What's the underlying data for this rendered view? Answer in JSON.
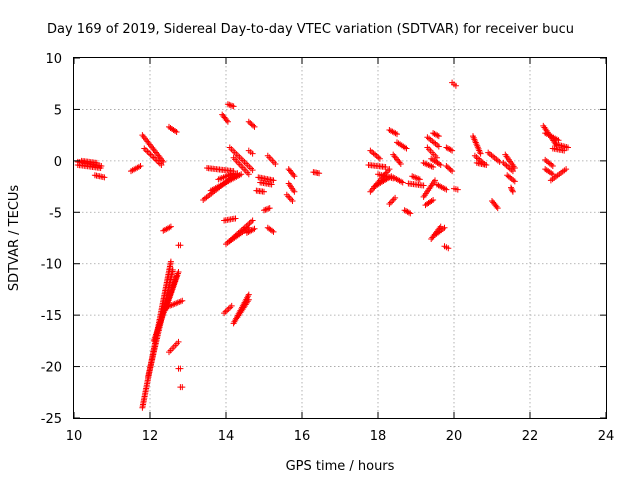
{
  "chart_data": {
    "type": "scatter",
    "title": "Day 169 of 2019, Sidereal Day-to-day VTEC variation (SDTVAR) for receiver bucu",
    "xlabel": "GPS time / hours",
    "ylabel": "SDTVAR / TECUs",
    "xlim": [
      10,
      24
    ],
    "ylim": [
      -25,
      10
    ],
    "xticks": [
      10,
      12,
      14,
      16,
      18,
      20,
      22,
      24
    ],
    "yticks": [
      -25,
      -20,
      -15,
      -10,
      -5,
      0,
      5,
      10
    ],
    "grid": true,
    "marker": "plus",
    "marker_color": "#ff0000",
    "series": [
      {
        "name": "SDTVAR",
        "segments": [
          {
            "x": [
              10.1,
              10.72
            ],
            "y": [
              -0.1,
              -0.5
            ]
          },
          {
            "x": [
              10.1,
              10.7
            ],
            "y": [
              -0.4,
              -0.7
            ]
          },
          {
            "x": [
              10.2,
              10.6
            ],
            "y": [
              0.0,
              -0.2
            ]
          },
          {
            "x": [
              10.55,
              10.8
            ],
            "y": [
              -1.4,
              -1.6
            ]
          },
          {
            "x": [
              11.5,
              11.75
            ],
            "y": [
              -1.0,
              -0.5
            ]
          },
          {
            "x": [
              11.8,
              12.35
            ],
            "y": [
              2.5,
              -0.1
            ]
          },
          {
            "x": [
              11.85,
              12.3
            ],
            "y": [
              1.2,
              -0.4
            ]
          },
          {
            "x": [
              12.5,
              12.7
            ],
            "y": [
              3.3,
              2.8
            ]
          },
          {
            "x": [
              12.35,
              12.55
            ],
            "y": [
              -6.8,
              -6.4
            ]
          },
          {
            "x": [
              11.8,
              12.55
            ],
            "y": [
              -24.0,
              -9.8
            ]
          },
          {
            "x": [
              11.95,
              12.6
            ],
            "y": [
              -21.0,
              -10.6
            ]
          },
          {
            "x": [
              12.1,
              12.7
            ],
            "y": [
              -17.5,
              -11.2
            ]
          },
          {
            "x": [
              12.4,
              12.75
            ],
            "y": [
              -14.5,
              -10.8
            ]
          },
          {
            "x": [
              12.5,
              12.75
            ],
            "y": [
              -18.6,
              -17.6
            ]
          },
          {
            "x": [
              12.45,
              12.85
            ],
            "y": [
              -14.2,
              -13.6
            ]
          },
          {
            "x": [
              12.75,
              12.8
            ],
            "y": [
              -8.2,
              -8.2
            ]
          },
          {
            "x": [
              12.75,
              12.8
            ],
            "y": [
              -20.2,
              -20.2
            ]
          },
          {
            "x": [
              12.8,
              12.85
            ],
            "y": [
              -22.0,
              -22.0
            ]
          },
          {
            "x": [
              13.5,
              14.2
            ],
            "y": [
              -0.7,
              -1.0
            ]
          },
          {
            "x": [
              13.4,
              14.3
            ],
            "y": [
              -3.8,
              -1.2
            ]
          },
          {
            "x": [
              13.6,
              14.4
            ],
            "y": [
              -2.9,
              -1.3
            ]
          },
          {
            "x": [
              13.8,
              14.2
            ],
            "y": [
              -1.8,
              -1.2
            ]
          },
          {
            "x": [
              13.9,
              14.05
            ],
            "y": [
              4.5,
              3.8
            ]
          },
          {
            "x": [
              14.05,
              14.2
            ],
            "y": [
              5.5,
              5.3
            ]
          },
          {
            "x": [
              14.1,
              14.7
            ],
            "y": [
              1.3,
              -0.9
            ]
          },
          {
            "x": [
              14.2,
              14.6
            ],
            "y": [
              0.3,
              -1.3
            ]
          },
          {
            "x": [
              14.6,
              14.75
            ],
            "y": [
              3.8,
              3.3
            ]
          },
          {
            "x": [
              14.6,
              14.7
            ],
            "y": [
              1.0,
              0.7
            ]
          },
          {
            "x": [
              13.95,
              14.25
            ],
            "y": [
              -5.8,
              -5.6
            ]
          },
          {
            "x": [
              14.0,
              14.7
            ],
            "y": [
              -8.1,
              -5.8
            ]
          },
          {
            "x": [
              14.1,
              14.6
            ],
            "y": [
              -7.8,
              -6.5
            ]
          },
          {
            "x": [
              13.95,
              14.15
            ],
            "y": [
              -14.8,
              -14.1
            ]
          },
          {
            "x": [
              14.2,
              14.6
            ],
            "y": [
              -15.8,
              -13.0
            ]
          },
          {
            "x": [
              14.3,
              14.6
            ],
            "y": [
              -15.2,
              -13.5
            ]
          },
          {
            "x": [
              14.55,
              14.75
            ],
            "y": [
              -7.0,
              -6.6
            ]
          },
          {
            "x": [
              14.85,
              15.25
            ],
            "y": [
              -1.6,
              -1.9
            ]
          },
          {
            "x": [
              14.9,
              15.2
            ],
            "y": [
              -2.1,
              -2.3
            ]
          },
          {
            "x": [
              14.8,
              15.0
            ],
            "y": [
              -2.9,
              -3.0
            ]
          },
          {
            "x": [
              15.0,
              15.15
            ],
            "y": [
              -4.8,
              -4.6
            ]
          },
          {
            "x": [
              15.1,
              15.25
            ],
            "y": [
              -6.5,
              -6.9
            ]
          },
          {
            "x": [
              15.1,
              15.3
            ],
            "y": [
              0.5,
              -0.3
            ]
          },
          {
            "x": [
              15.65,
              15.8
            ],
            "y": [
              -0.8,
              -1.5
            ]
          },
          {
            "x": [
              15.65,
              15.8
            ],
            "y": [
              -2.2,
              -3.0
            ]
          },
          {
            "x": [
              15.6,
              15.75
            ],
            "y": [
              -3.3,
              -3.9
            ]
          },
          {
            "x": [
              16.3,
              16.45
            ],
            "y": [
              -1.1,
              -1.2
            ]
          },
          {
            "x": [
              17.8,
              18.05
            ],
            "y": [
              1.0,
              0.2
            ]
          },
          {
            "x": [
              17.75,
              18.2
            ],
            "y": [
              -0.4,
              -0.6
            ]
          },
          {
            "x": [
              17.8,
              18.3
            ],
            "y": [
              -3.0,
              -0.8
            ]
          },
          {
            "x": [
              17.9,
              18.35
            ],
            "y": [
              -2.5,
              -1.5
            ]
          },
          {
            "x": [
              18.0,
              18.4
            ],
            "y": [
              -1.3,
              -1.7
            ]
          },
          {
            "x": [
              18.3,
              18.5
            ],
            "y": [
              3.0,
              2.6
            ]
          },
          {
            "x": [
              18.3,
              18.45
            ],
            "y": [
              -4.2,
              -3.6
            ]
          },
          {
            "x": [
              18.4,
              18.65
            ],
            "y": [
              -1.6,
              -2.1
            ]
          },
          {
            "x": [
              18.5,
              18.75
            ],
            "y": [
              1.8,
              1.2
            ]
          },
          {
            "x": [
              18.4,
              18.6
            ],
            "y": [
              0.6,
              -0.3
            ]
          },
          {
            "x": [
              18.7,
              18.85
            ],
            "y": [
              -4.8,
              -5.1
            ]
          },
          {
            "x": [
              18.8,
              19.2
            ],
            "y": [
              -2.2,
              -2.4
            ]
          },
          {
            "x": [
              18.9,
              19.1
            ],
            "y": [
              -1.5,
              -1.8
            ]
          },
          {
            "x": [
              19.2,
              19.45
            ],
            "y": [
              -0.2,
              -0.6
            ]
          },
          {
            "x": [
              19.2,
              19.5
            ],
            "y": [
              -3.5,
              -1.9
            ]
          },
          {
            "x": [
              19.25,
              19.45
            ],
            "y": [
              -4.3,
              -3.8
            ]
          },
          {
            "x": [
              19.3,
              19.55
            ],
            "y": [
              1.3,
              0.3
            ]
          },
          {
            "x": [
              19.3,
              19.6
            ],
            "y": [
              2.3,
              1.4
            ]
          },
          {
            "x": [
              19.45,
              19.6
            ],
            "y": [
              2.7,
              2.4
            ]
          },
          {
            "x": [
              19.4,
              19.65
            ],
            "y": [
              0.2,
              -0.4
            ]
          },
          {
            "x": [
              19.4,
              19.65
            ],
            "y": [
              -7.6,
              -6.4
            ]
          },
          {
            "x": [
              19.5,
              19.75
            ],
            "y": [
              -7.2,
              -6.5
            ]
          },
          {
            "x": [
              19.75,
              19.85
            ],
            "y": [
              -8.3,
              -8.5
            ]
          },
          {
            "x": [
              19.55,
              19.8
            ],
            "y": [
              -2.3,
              -2.8
            ]
          },
          {
            "x": [
              19.8,
              19.95
            ],
            "y": [
              -0.5,
              -1.0
            ]
          },
          {
            "x": [
              19.8,
              19.95
            ],
            "y": [
              1.3,
              1.0
            ]
          },
          {
            "x": [
              20.0,
              20.1
            ],
            "y": [
              -2.7,
              -2.8
            ]
          },
          {
            "x": [
              19.95,
              20.05
            ],
            "y": [
              7.6,
              7.3
            ]
          },
          {
            "x": [
              20.5,
              20.7
            ],
            "y": [
              2.4,
              0.7
            ]
          },
          {
            "x": [
              20.6,
              20.85
            ],
            "y": [
              -0.2,
              -0.4
            ]
          },
          {
            "x": [
              20.55,
              20.8
            ],
            "y": [
              0.5,
              -0.3
            ]
          },
          {
            "x": [
              20.9,
              21.2
            ],
            "y": [
              0.8,
              -0.1
            ]
          },
          {
            "x": [
              21.0,
              21.15
            ],
            "y": [
              -3.9,
              -4.6
            ]
          },
          {
            "x": [
              21.3,
              21.55
            ],
            "y": [
              -0.2,
              -1.0
            ]
          },
          {
            "x": [
              21.35,
              21.6
            ],
            "y": [
              0.6,
              -0.7
            ]
          },
          {
            "x": [
              21.4,
              21.6
            ],
            "y": [
              -1.4,
              -2.0
            ]
          },
          {
            "x": [
              21.5,
              21.55
            ],
            "y": [
              -2.6,
              -3.0
            ]
          },
          {
            "x": [
              22.35,
              22.7
            ],
            "y": [
              3.4,
              1.5
            ]
          },
          {
            "x": [
              22.4,
              22.75
            ],
            "y": [
              2.7,
              2.0
            ]
          },
          {
            "x": [
              22.4,
              22.6
            ],
            "y": [
              -0.8,
              -1.3
            ]
          },
          {
            "x": [
              22.4,
              22.6
            ],
            "y": [
              0.1,
              -0.5
            ]
          },
          {
            "x": [
              22.55,
              22.95
            ],
            "y": [
              -1.9,
              -0.8
            ]
          },
          {
            "x": [
              22.6,
              22.9
            ],
            "y": [
              1.2,
              1.0
            ]
          },
          {
            "x": [
              22.7,
              23.0
            ],
            "y": [
              1.6,
              1.3
            ]
          }
        ]
      }
    ]
  }
}
